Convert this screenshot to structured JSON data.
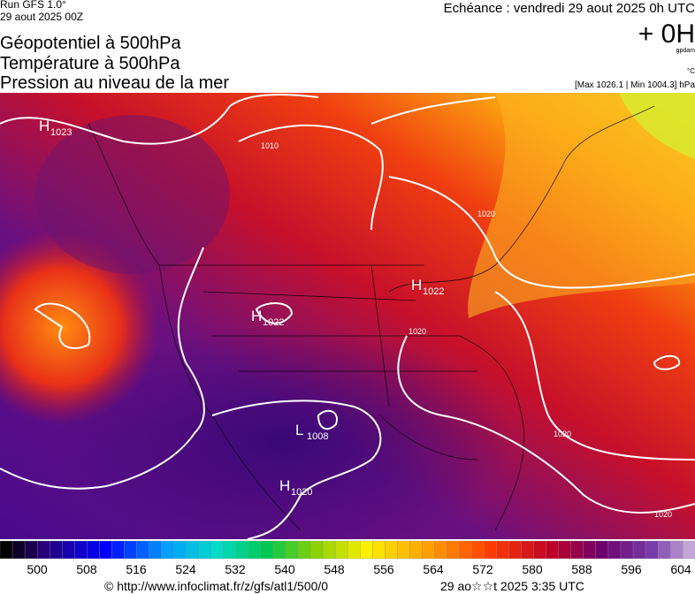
{
  "header": {
    "run": "Run GFS 1.0°",
    "date": "29 aout 2025 00Z",
    "echeance": "Echéance : vendredi 29 aout 2025 0h UTC",
    "offset": "+ 0H",
    "unit_geo": "gpdam",
    "unit_temp": "°C",
    "extremes": "[Max 1026.1 | Min 1004.3] hPa",
    "titles": [
      "Géopotentiel à 500hPa",
      "Température à 500hPa",
      "Pression au niveau de la mer"
    ]
  },
  "map": {
    "centers": [
      {
        "letter": "H",
        "value": 1023
      },
      {
        "letter": "H",
        "value": 1022
      },
      {
        "letter": "L",
        "value": 1008
      },
      {
        "letter": "H",
        "value": 1020
      },
      {
        "letter": "H",
        "value": 1022
      }
    ],
    "isobar_labels": [
      1010,
      1020,
      1020,
      1020,
      1020
    ]
  },
  "colorbar": {
    "labels": [
      500,
      508,
      516,
      524,
      532,
      540,
      548,
      556,
      564,
      572,
      580,
      588,
      596,
      604
    ]
  },
  "footer": {
    "source": "© http://www.infoclimat.fr/z/gfs/atl1/500/0",
    "stamp": "29 ao☆☆t 2025  3:35 UTC"
  }
}
